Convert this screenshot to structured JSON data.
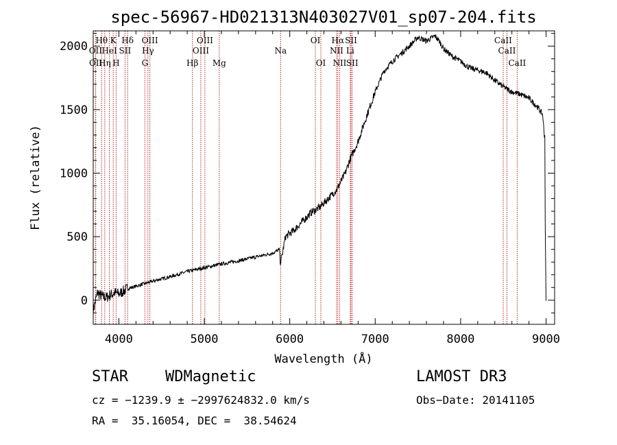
{
  "chart_data": {
    "type": "line",
    "title": "spec-56967-HD021313N403027V01_sp07-204.fits",
    "xlabel": "Wavelength (Å)",
    "ylabel": "Flux (relative)",
    "xlim": [
      3700,
      9100
    ],
    "ylim": [
      -190,
      2120
    ],
    "xticks": [
      4000,
      5000,
      6000,
      7000,
      8000,
      9000
    ],
    "yticks": [
      0,
      500,
      1000,
      1500,
      2000
    ],
    "grid": false,
    "spectrum": {
      "x": [
        3700,
        3750,
        3800,
        3850,
        3900,
        3950,
        4000,
        4100,
        4200,
        4300,
        4400,
        4600,
        4800,
        5000,
        5200,
        5400,
        5600,
        5800,
        5880,
        5890,
        5950,
        6050,
        6150,
        6250,
        6350,
        6450,
        6550,
        6650,
        6700,
        6800,
        6900,
        7000,
        7100,
        7200,
        7300,
        7400,
        7500,
        7600,
        7700,
        7750,
        7800,
        7900,
        7950,
        8000,
        8100,
        8200,
        8300,
        8400,
        8500,
        8600,
        8700,
        8800,
        8900,
        8960,
        8980,
        8990,
        9000
      ],
      "y": [
        -80,
        60,
        30,
        20,
        40,
        60,
        50,
        90,
        110,
        130,
        150,
        185,
        225,
        255,
        285,
        310,
        340,
        370,
        400,
        280,
        500,
        550,
        620,
        690,
        730,
        800,
        870,
        1000,
        1100,
        1250,
        1450,
        1640,
        1800,
        1880,
        1940,
        2000,
        2070,
        2040,
        2080,
        2040,
        1980,
        1920,
        1900,
        1880,
        1830,
        1810,
        1790,
        1730,
        1680,
        1640,
        1620,
        1590,
        1520,
        1460,
        1300,
        600,
        -5
      ]
    },
    "spectral_lines": [
      {
        "name": "Hθ",
        "wavelength": 3798,
        "row": 1
      },
      {
        "name": "OII",
        "wavelength": 3727,
        "row": 2
      },
      {
        "name": "OII",
        "wavelength": 3729,
        "row": 3
      },
      {
        "name": "Hη",
        "wavelength": 3835,
        "row": 3
      },
      {
        "name": "HeI",
        "wavelength": 3889,
        "row": 2
      },
      {
        "name": "K",
        "wavelength": 3934,
        "row": 1
      },
      {
        "name": "H",
        "wavelength": 3968,
        "row": 3
      },
      {
        "name": "SII",
        "wavelength": 4072,
        "row": 2
      },
      {
        "name": "Hδ",
        "wavelength": 4102,
        "row": 1
      },
      {
        "name": "OIII",
        "wavelength": 4363,
        "row": 1
      },
      {
        "name": "Hγ",
        "wavelength": 4340,
        "row": 2
      },
      {
        "name": "G",
        "wavelength": 4305,
        "row": 3
      },
      {
        "name": "Hβ",
        "wavelength": 4861,
        "row": 3
      },
      {
        "name": "OIII",
        "wavelength": 5007,
        "row": 1
      },
      {
        "name": "OIII",
        "wavelength": 4959,
        "row": 2
      },
      {
        "name": "Mg",
        "wavelength": 5175,
        "row": 3
      },
      {
        "name": "Na",
        "wavelength": 5893,
        "row": 2
      },
      {
        "name": "OI",
        "wavelength": 6300,
        "row": 1
      },
      {
        "name": "OI",
        "wavelength": 6364,
        "row": 3
      },
      {
        "name": "Hα",
        "wavelength": 6563,
        "row": 1
      },
      {
        "name": "NII",
        "wavelength": 6548,
        "row": 2
      },
      {
        "name": "NII",
        "wavelength": 6584,
        "row": 3
      },
      {
        "name": "SII",
        "wavelength": 6717,
        "row": 1
      },
      {
        "name": "Li",
        "wavelength": 6708,
        "row": 2
      },
      {
        "name": "SII",
        "wavelength": 6731,
        "row": 3
      },
      {
        "name": "CaII",
        "wavelength": 8498,
        "row": 1
      },
      {
        "name": "CaII",
        "wavelength": 8542,
        "row": 2
      },
      {
        "name": "CaII",
        "wavelength": 8662,
        "row": 3
      }
    ],
    "line_color": "#000000",
    "marker_color": "#b22222"
  },
  "footer": {
    "class": "STAR",
    "subclass": "WDMagnetic",
    "survey": "LAMOST DR3",
    "cz": "cz = −1239.9 ± −2997624832.0 km/s",
    "obs_date": "Obs−Date: 20141105",
    "radec": "RA =  35.16054, DEC =  38.54624"
  }
}
